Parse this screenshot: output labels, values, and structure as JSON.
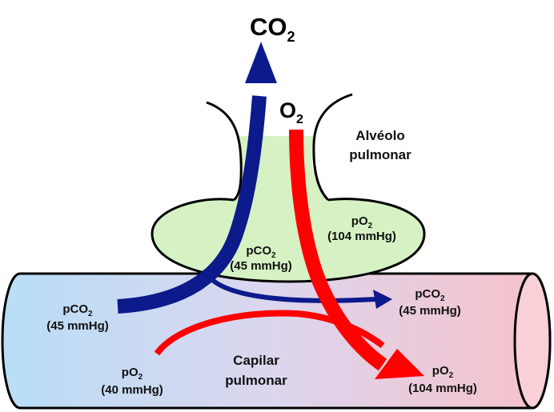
{
  "gases": {
    "co2": {
      "base": "CO",
      "sub": "2"
    },
    "o2": {
      "base": "O",
      "sub": "2"
    }
  },
  "alveolus": {
    "name_line1": "Alvéolo",
    "name_line2": "pulmonar",
    "po2": {
      "base": "pO",
      "sub": "2",
      "value": "(104 mmHg)"
    },
    "pco2": {
      "base": "pCO",
      "sub": "2",
      "value": "(45 mmHg)"
    }
  },
  "capillary": {
    "name_line1": "Capilar",
    "name_line2": "pulmonar",
    "venous_pco2": {
      "base": "pCO",
      "sub": "2",
      "value": "(45 mmHg)"
    },
    "venous_po2": {
      "base": "pO",
      "sub": "2",
      "value": "(40 mmHg)"
    },
    "arterial_pco2": {
      "base": "pCO",
      "sub": "2",
      "value": "(45 mmHg)"
    },
    "arterial_po2": {
      "base": "pO",
      "sub": "2",
      "value": "(104 mmHg)"
    }
  },
  "colors": {
    "co2_arrow": "#0c1a8c",
    "o2_arrow": "#ff0000",
    "alveolus_fill": "#d6f2c4",
    "capillary_left": "#b8def6",
    "capillary_right": "#f7c1c9"
  }
}
